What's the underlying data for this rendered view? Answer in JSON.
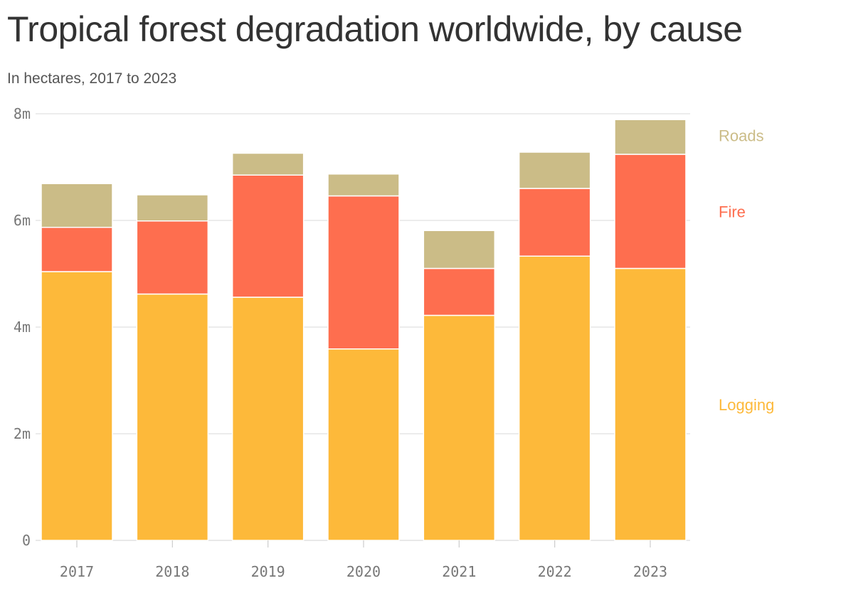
{
  "header": {
    "title": "Tropical forest degradation worldwide, by cause",
    "subtitle": "In hectares, 2017 to 2023"
  },
  "chart_data": {
    "type": "bar",
    "stacked": true,
    "categories": [
      "2017",
      "2018",
      "2019",
      "2020",
      "2021",
      "2022",
      "2023"
    ],
    "series": [
      {
        "name": "Logging",
        "color": "#fdb93a",
        "values": [
          5.04,
          4.62,
          4.56,
          3.59,
          4.22,
          5.33,
          5.1
        ]
      },
      {
        "name": "Fire",
        "color": "#fe6e4f",
        "values": [
          0.83,
          1.37,
          2.29,
          2.87,
          0.88,
          1.27,
          2.14
        ]
      },
      {
        "name": "Roads",
        "color": "#cbbc87",
        "values": [
          0.82,
          0.49,
          0.41,
          0.41,
          0.71,
          0.68,
          0.65
        ]
      }
    ],
    "y_ticks": [
      {
        "value": 0,
        "label": "0"
      },
      {
        "value": 2,
        "label": "2m"
      },
      {
        "value": 4,
        "label": "4m"
      },
      {
        "value": 6,
        "label": "6m"
      },
      {
        "value": 8,
        "label": "8m"
      }
    ],
    "ylim": [
      0,
      8
    ],
    "grid": true,
    "legend_position": "right, inline with stacks"
  }
}
